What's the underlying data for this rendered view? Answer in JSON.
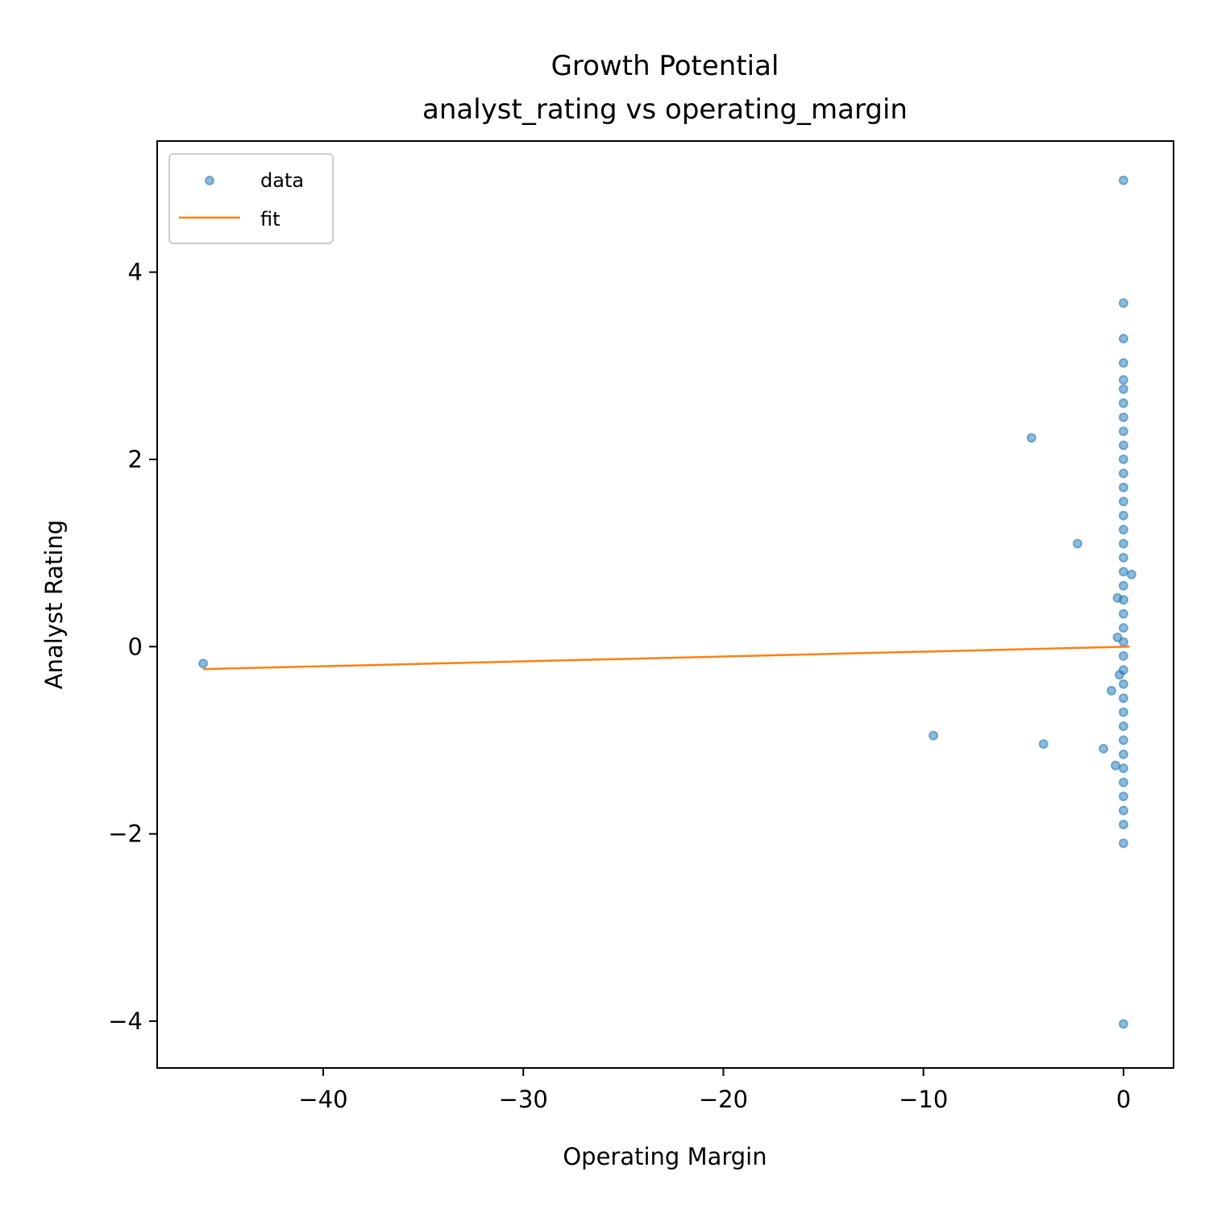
{
  "chart_data": {
    "type": "scatter",
    "title": "Growth Potential",
    "subtitle": "analyst_rating vs operating_margin",
    "xlabel": "Operating Margin",
    "ylabel": "Analyst Rating",
    "xlim": [
      -48.3,
      2.5
    ],
    "ylim": [
      -4.5,
      5.4
    ],
    "xticks": [
      -40,
      -30,
      -20,
      -10,
      0
    ],
    "yticks": [
      -4,
      -2,
      0,
      2,
      4
    ],
    "xtick_labels": [
      "−40",
      "−30",
      "−20",
      "−10",
      "0"
    ],
    "ytick_labels": [
      "−4",
      "−2",
      "0",
      "2",
      "4"
    ],
    "grid": false,
    "legend_position": "upper-left",
    "colors": {
      "data": "#1f77b4",
      "fit": "#ff7f0e"
    },
    "series": [
      {
        "name": "data",
        "kind": "scatter",
        "points": [
          [
            -46.0,
            -0.18
          ],
          [
            -9.5,
            -0.95
          ],
          [
            -4.6,
            2.23
          ],
          [
            -4.0,
            -1.04
          ],
          [
            -2.3,
            1.1
          ],
          [
            -1.0,
            -1.09
          ],
          [
            -0.6,
            -0.47
          ],
          [
            -0.4,
            -1.27
          ],
          [
            -0.3,
            0.52
          ],
          [
            -0.3,
            0.1
          ],
          [
            -0.2,
            -0.3
          ],
          [
            0.4,
            0.77
          ],
          [
            0.0,
            4.98
          ],
          [
            0.0,
            3.67
          ],
          [
            0.0,
            3.29
          ],
          [
            0.0,
            3.03
          ],
          [
            0.0,
            2.85
          ],
          [
            0.0,
            2.75
          ],
          [
            0.0,
            2.6
          ],
          [
            0.0,
            2.45
          ],
          [
            0.0,
            2.3
          ],
          [
            0.0,
            2.15
          ],
          [
            0.0,
            2.0
          ],
          [
            0.0,
            1.85
          ],
          [
            0.0,
            1.7
          ],
          [
            0.0,
            1.55
          ],
          [
            0.0,
            1.4
          ],
          [
            0.0,
            1.25
          ],
          [
            0.0,
            1.1
          ],
          [
            0.0,
            0.95
          ],
          [
            0.0,
            0.8
          ],
          [
            0.0,
            0.65
          ],
          [
            0.0,
            0.5
          ],
          [
            0.0,
            0.35
          ],
          [
            0.0,
            0.2
          ],
          [
            0.0,
            0.05
          ],
          [
            0.0,
            -0.1
          ],
          [
            0.0,
            -0.25
          ],
          [
            0.0,
            -0.4
          ],
          [
            0.0,
            -0.55
          ],
          [
            0.0,
            -0.7
          ],
          [
            0.0,
            -0.85
          ],
          [
            0.0,
            -1.0
          ],
          [
            0.0,
            -1.15
          ],
          [
            0.0,
            -1.3
          ],
          [
            0.0,
            -1.45
          ],
          [
            0.0,
            -1.6
          ],
          [
            0.0,
            -1.75
          ],
          [
            0.0,
            -1.9
          ],
          [
            0.0,
            -2.1
          ],
          [
            0.0,
            -4.03
          ]
        ]
      },
      {
        "name": "fit",
        "kind": "line",
        "points": [
          [
            -46.0,
            -0.24
          ],
          [
            0.3,
            0.0
          ]
        ]
      }
    ]
  }
}
